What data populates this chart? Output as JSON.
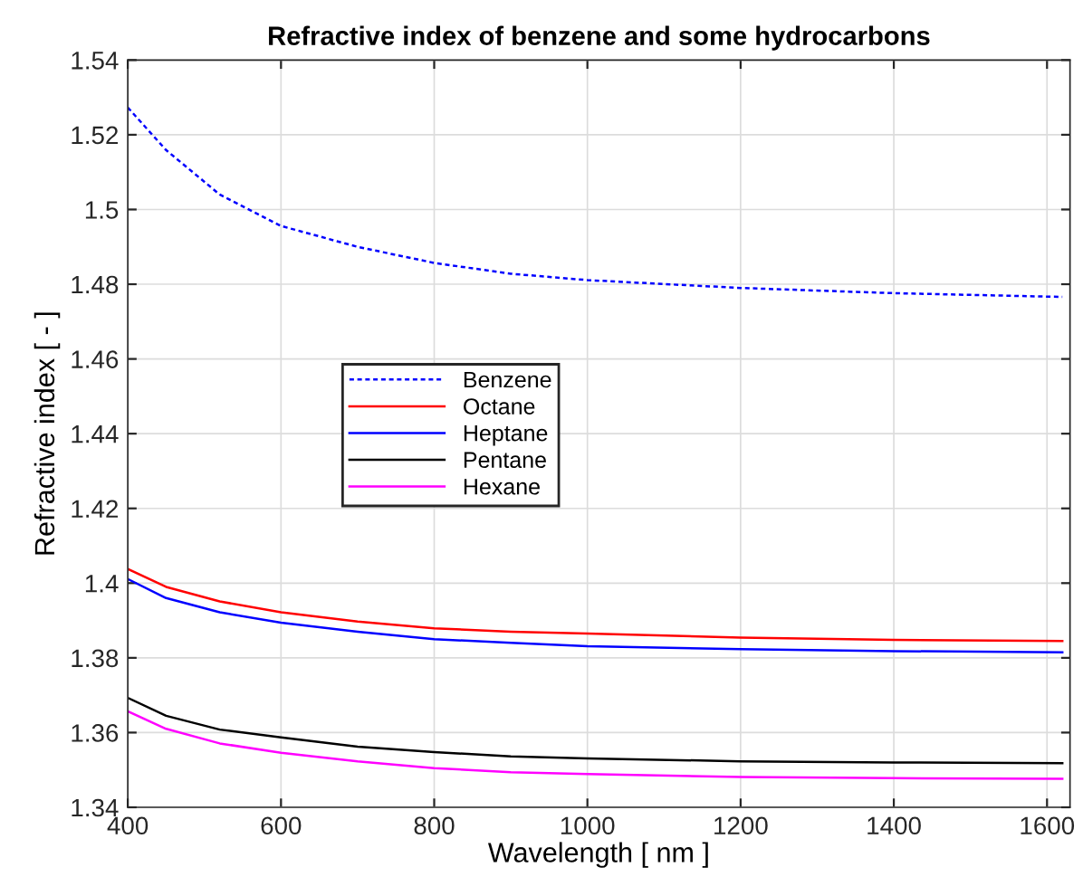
{
  "chart_data": {
    "type": "line",
    "title": "Refractive index of benzene and some hydrocarbons",
    "xlabel": "Wavelength [ nm ]",
    "ylabel": "Refractive index [ - ]",
    "x": [
      400,
      450,
      520,
      600,
      700,
      800,
      900,
      1000,
      1200,
      1400,
      1620
    ],
    "series": [
      {
        "name": "Benzene",
        "color": "#0000ff",
        "line_style": "dotted",
        "values": [
          1.5273,
          1.5159,
          1.504,
          1.4956,
          1.49,
          1.4857,
          1.4828,
          1.4811,
          1.479,
          1.4776,
          1.4766
        ]
      },
      {
        "name": "Octane",
        "color": "#ff0000",
        "values": [
          1.4038,
          1.399,
          1.3951,
          1.3922,
          1.3897,
          1.3879,
          1.387,
          1.3865,
          1.3854,
          1.3848,
          1.3845
        ]
      },
      {
        "name": "Heptane",
        "color": "#0000ff",
        "values": [
          1.4011,
          1.396,
          1.3922,
          1.3894,
          1.387,
          1.385,
          1.384,
          1.3831,
          1.3823,
          1.3818,
          1.3815
        ]
      },
      {
        "name": "Pentane",
        "color": "#000000",
        "values": [
          1.3693,
          1.3645,
          1.3608,
          1.3587,
          1.3562,
          1.3548,
          1.3536,
          1.3531,
          1.3523,
          1.352,
          1.3518
        ]
      },
      {
        "name": "Hexane",
        "color": "#ff00ff",
        "values": [
          1.3657,
          1.361,
          1.3571,
          1.3546,
          1.3523,
          1.3505,
          1.3494,
          1.3489,
          1.3481,
          1.3478,
          1.3476
        ]
      }
    ],
    "xlim": [
      400,
      1630
    ],
    "xticks": [
      400,
      600,
      800,
      1000,
      1200,
      1400,
      1600
    ],
    "ylim": [
      1.34,
      1.54
    ],
    "yticks": [
      1.34,
      1.36,
      1.38,
      1.4,
      1.42,
      1.44,
      1.46,
      1.48,
      1.5,
      1.52,
      1.54
    ],
    "grid": true,
    "legend": "left",
    "line_style": "solid",
    "marker": "none"
  }
}
